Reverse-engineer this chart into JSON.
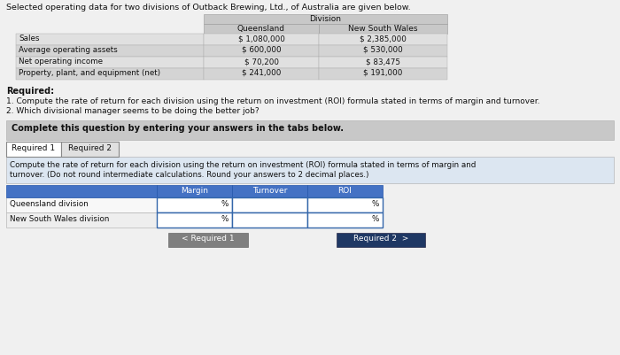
{
  "title": "Selected operating data for two divisions of Outback Brewing, Ltd., of Australia are given below.",
  "division_header": "Division",
  "col1_header": "Queensland",
  "col2_header": "New South Wales",
  "rows": [
    [
      "Sales",
      "$ 1,080,000",
      "$ 2,385,000"
    ],
    [
      "Average operating assets",
      "$ 600,000",
      "$ 530,000"
    ],
    [
      "Net operating income",
      "$ 70,200",
      "$ 83,475"
    ],
    [
      "Property, plant, and equipment (net)",
      "$ 241,000",
      "$ 191,000"
    ]
  ],
  "required_header": "Required:",
  "required_items": [
    "1. Compute the rate of return for each division using the return on investment (ROI) formula stated in terms of margin and turnover.",
    "2. Which divisional manager seems to be doing the better job?"
  ],
  "complete_text": "Complete this question by entering your answers in the tabs below.",
  "tab1": "Required 1",
  "tab2": "Required 2",
  "instruction_line1": "Compute the rate of return for each division using the return on investment (ROI) formula stated in terms of margin and",
  "instruction_line2": "turnover. (Do not round intermediate calculations. Round your answers to 2 decimal places.)",
  "table2_headers": [
    "Margin",
    "Turnover",
    "ROI"
  ],
  "table2_rows": [
    "Queensland division",
    "New South Wales division"
  ],
  "percent_symbol": "%",
  "btn1": "< Required 1",
  "btn2": "Required 2  >",
  "bg_color": "#f0f0f0",
  "header_bg": "#4472c4",
  "btn1_bg": "#7f7f7f",
  "btn2_bg": "#1f3864"
}
